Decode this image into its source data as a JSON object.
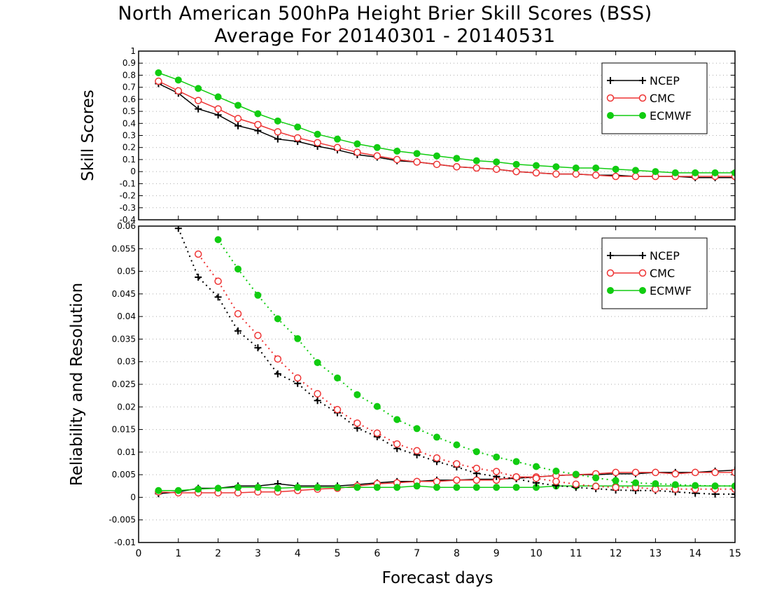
{
  "title": {
    "line1": "North American 500hPa Height Brier Skill Scores (BSS)",
    "line2": "Average For 20140301 - 20140531"
  },
  "chart_data": [
    {
      "type": "line",
      "ylabel": "Skill Scores",
      "xlabel": "",
      "xlim": [
        0,
        15
      ],
      "ylim": [
        -0.4,
        1
      ],
      "yticks": [
        "-0.4",
        "-0.3",
        "-0.2",
        "-0.1",
        "0",
        "0.1",
        "0.2",
        "0.3",
        "0.4",
        "0.5",
        "0.6",
        "0.7",
        "0.8",
        "0.9",
        "1"
      ],
      "grid": true,
      "legend_position": "top-right",
      "x": [
        0.5,
        1,
        1.5,
        2,
        2.5,
        3,
        3.5,
        4,
        4.5,
        5,
        5.5,
        6,
        6.5,
        7,
        7.5,
        8,
        8.5,
        9,
        9.5,
        10,
        10.5,
        11,
        11.5,
        12,
        12.5,
        13,
        13.5,
        14,
        14.5,
        15
      ],
      "series": [
        {
          "name": "NCEP",
          "color": "#000000",
          "marker": "plus",
          "line": "solid",
          "values": [
            0.73,
            0.65,
            0.52,
            0.47,
            0.38,
            0.34,
            0.27,
            0.25,
            0.21,
            0.18,
            0.14,
            0.12,
            0.09,
            0.08,
            0.06,
            0.04,
            0.03,
            0.02,
            0.0,
            -0.01,
            -0.02,
            -0.02,
            -0.03,
            -0.03,
            -0.04,
            -0.04,
            -0.04,
            -0.05,
            -0.05,
            -0.05
          ]
        },
        {
          "name": "CMC",
          "color": "#ee3333",
          "marker": "open-circle",
          "line": "solid",
          "values": [
            0.75,
            0.67,
            0.59,
            0.52,
            0.44,
            0.39,
            0.33,
            0.28,
            0.24,
            0.2,
            0.16,
            0.13,
            0.1,
            0.08,
            0.06,
            0.04,
            0.03,
            0.02,
            0.0,
            -0.01,
            -0.02,
            -0.02,
            -0.03,
            -0.04,
            -0.04,
            -0.04,
            -0.04,
            -0.04,
            -0.04,
            -0.04
          ]
        },
        {
          "name": "ECMWF",
          "color": "#11cc11",
          "marker": "filled-circle",
          "line": "solid",
          "values": [
            0.82,
            0.76,
            0.69,
            0.62,
            0.55,
            0.48,
            0.42,
            0.37,
            0.31,
            0.27,
            0.23,
            0.2,
            0.17,
            0.15,
            0.13,
            0.11,
            0.09,
            0.08,
            0.06,
            0.05,
            0.04,
            0.03,
            0.03,
            0.02,
            0.01,
            0.0,
            -0.01,
            -0.01,
            -0.01,
            -0.01
          ]
        }
      ]
    },
    {
      "type": "line",
      "ylabel": "Reliability and Resolution",
      "xlabel": "Forecast days",
      "xlim": [
        0,
        15
      ],
      "ylim": [
        -0.01,
        0.06
      ],
      "yticks": [
        "-0.01",
        "-0.005",
        "0",
        "0.005",
        "0.01",
        "0.015",
        "0.02",
        "0.025",
        "0.03",
        "0.035",
        "0.04",
        "0.045",
        "0.05",
        "0.055",
        "0.06"
      ],
      "xticks": [
        "0",
        "1",
        "2",
        "3",
        "4",
        "5",
        "6",
        "7",
        "8",
        "9",
        "10",
        "11",
        "12",
        "13",
        "14",
        "15"
      ],
      "grid": true,
      "legend_position": "top-right",
      "x": [
        0.5,
        1,
        1.5,
        2,
        2.5,
        3,
        3.5,
        4,
        4.5,
        5,
        5.5,
        6,
        6.5,
        7,
        7.5,
        8,
        8.5,
        9,
        9.5,
        10,
        10.5,
        11,
        11.5,
        12,
        12.5,
        13,
        13.5,
        14,
        14.5,
        15
      ],
      "series": [
        {
          "name": "NCEP",
          "color": "#000000",
          "marker": "plus",
          "line": "solid",
          "values": [
            0.0008,
            0.0012,
            0.002,
            0.002,
            0.0025,
            0.0025,
            0.003,
            0.0025,
            0.0025,
            0.0025,
            0.0028,
            0.0032,
            0.0035,
            0.0035,
            0.0038,
            0.0038,
            0.004,
            0.004,
            0.0042,
            0.0045,
            0.0048,
            0.005,
            0.005,
            0.0052,
            0.0052,
            0.0055,
            0.0055,
            0.0055,
            0.0058,
            0.006
          ]
        },
        {
          "name": "CMC",
          "color": "#ee3333",
          "marker": "open-circle",
          "line": "solid",
          "values": [
            0.0012,
            0.001,
            0.001,
            0.001,
            0.001,
            0.0012,
            0.0012,
            0.0015,
            0.0018,
            0.002,
            0.0025,
            0.003,
            0.0032,
            0.0035,
            0.0035,
            0.0038,
            0.0038,
            0.0038,
            0.0045,
            0.0045,
            0.0048,
            0.005,
            0.0052,
            0.0055,
            0.0055,
            0.0055,
            0.0052,
            0.0055,
            0.0055,
            0.0055
          ]
        },
        {
          "name": "ECMWF",
          "color": "#11cc11",
          "marker": "filled-circle",
          "line": "solid",
          "values": [
            0.0015,
            0.0015,
            0.0018,
            0.002,
            0.0022,
            0.0022,
            0.002,
            0.0022,
            0.0022,
            0.0022,
            0.0022,
            0.0022,
            0.0022,
            0.0025,
            0.0022,
            0.0022,
            0.0022,
            0.0022,
            0.0022,
            0.0022,
            0.0025,
            0.0025,
            0.0025,
            0.0025,
            0.0025,
            0.0025,
            0.0025,
            0.0025,
            0.0025,
            0.0025
          ]
        },
        {
          "name": "",
          "color": "#000000",
          "marker": "plus",
          "line": "dotted",
          "values": [
            null,
            0.0595,
            0.0487,
            0.0443,
            0.0368,
            0.0331,
            0.0273,
            0.0252,
            0.0214,
            0.0187,
            0.0153,
            0.0134,
            0.0108,
            0.0094,
            0.0079,
            0.0067,
            0.0053,
            0.0046,
            0.0041,
            0.0032,
            0.0026,
            0.0022,
            0.0019,
            0.0016,
            0.0015,
            0.0015,
            0.0012,
            0.0009,
            0.0007,
            0.0007
          ]
        },
        {
          "name": "",
          "color": "#ee3333",
          "marker": "open-circle",
          "line": "dotted",
          "values": [
            null,
            null,
            0.0538,
            0.0478,
            0.0406,
            0.0358,
            0.0306,
            0.0264,
            0.0229,
            0.0194,
            0.0164,
            0.0142,
            0.0118,
            0.0103,
            0.0087,
            0.0074,
            0.0064,
            0.0057,
            0.0045,
            0.0042,
            0.0035,
            0.0029,
            0.0024,
            0.0022,
            0.0022,
            0.0018,
            0.0018,
            0.0018,
            0.0018,
            0.0018
          ]
        },
        {
          "name": "",
          "color": "#11cc11",
          "marker": "filled-circle",
          "line": "dotted",
          "values": [
            null,
            null,
            null,
            0.057,
            0.0505,
            0.0447,
            0.0395,
            0.0351,
            0.0298,
            0.0264,
            0.0227,
            0.0201,
            0.0172,
            0.0152,
            0.0133,
            0.0116,
            0.0101,
            0.0089,
            0.0079,
            0.0068,
            0.0058,
            0.0051,
            0.0043,
            0.0037,
            0.0032,
            0.003,
            0.0028,
            0.0026,
            0.0025,
            0.0025
          ]
        }
      ]
    }
  ]
}
